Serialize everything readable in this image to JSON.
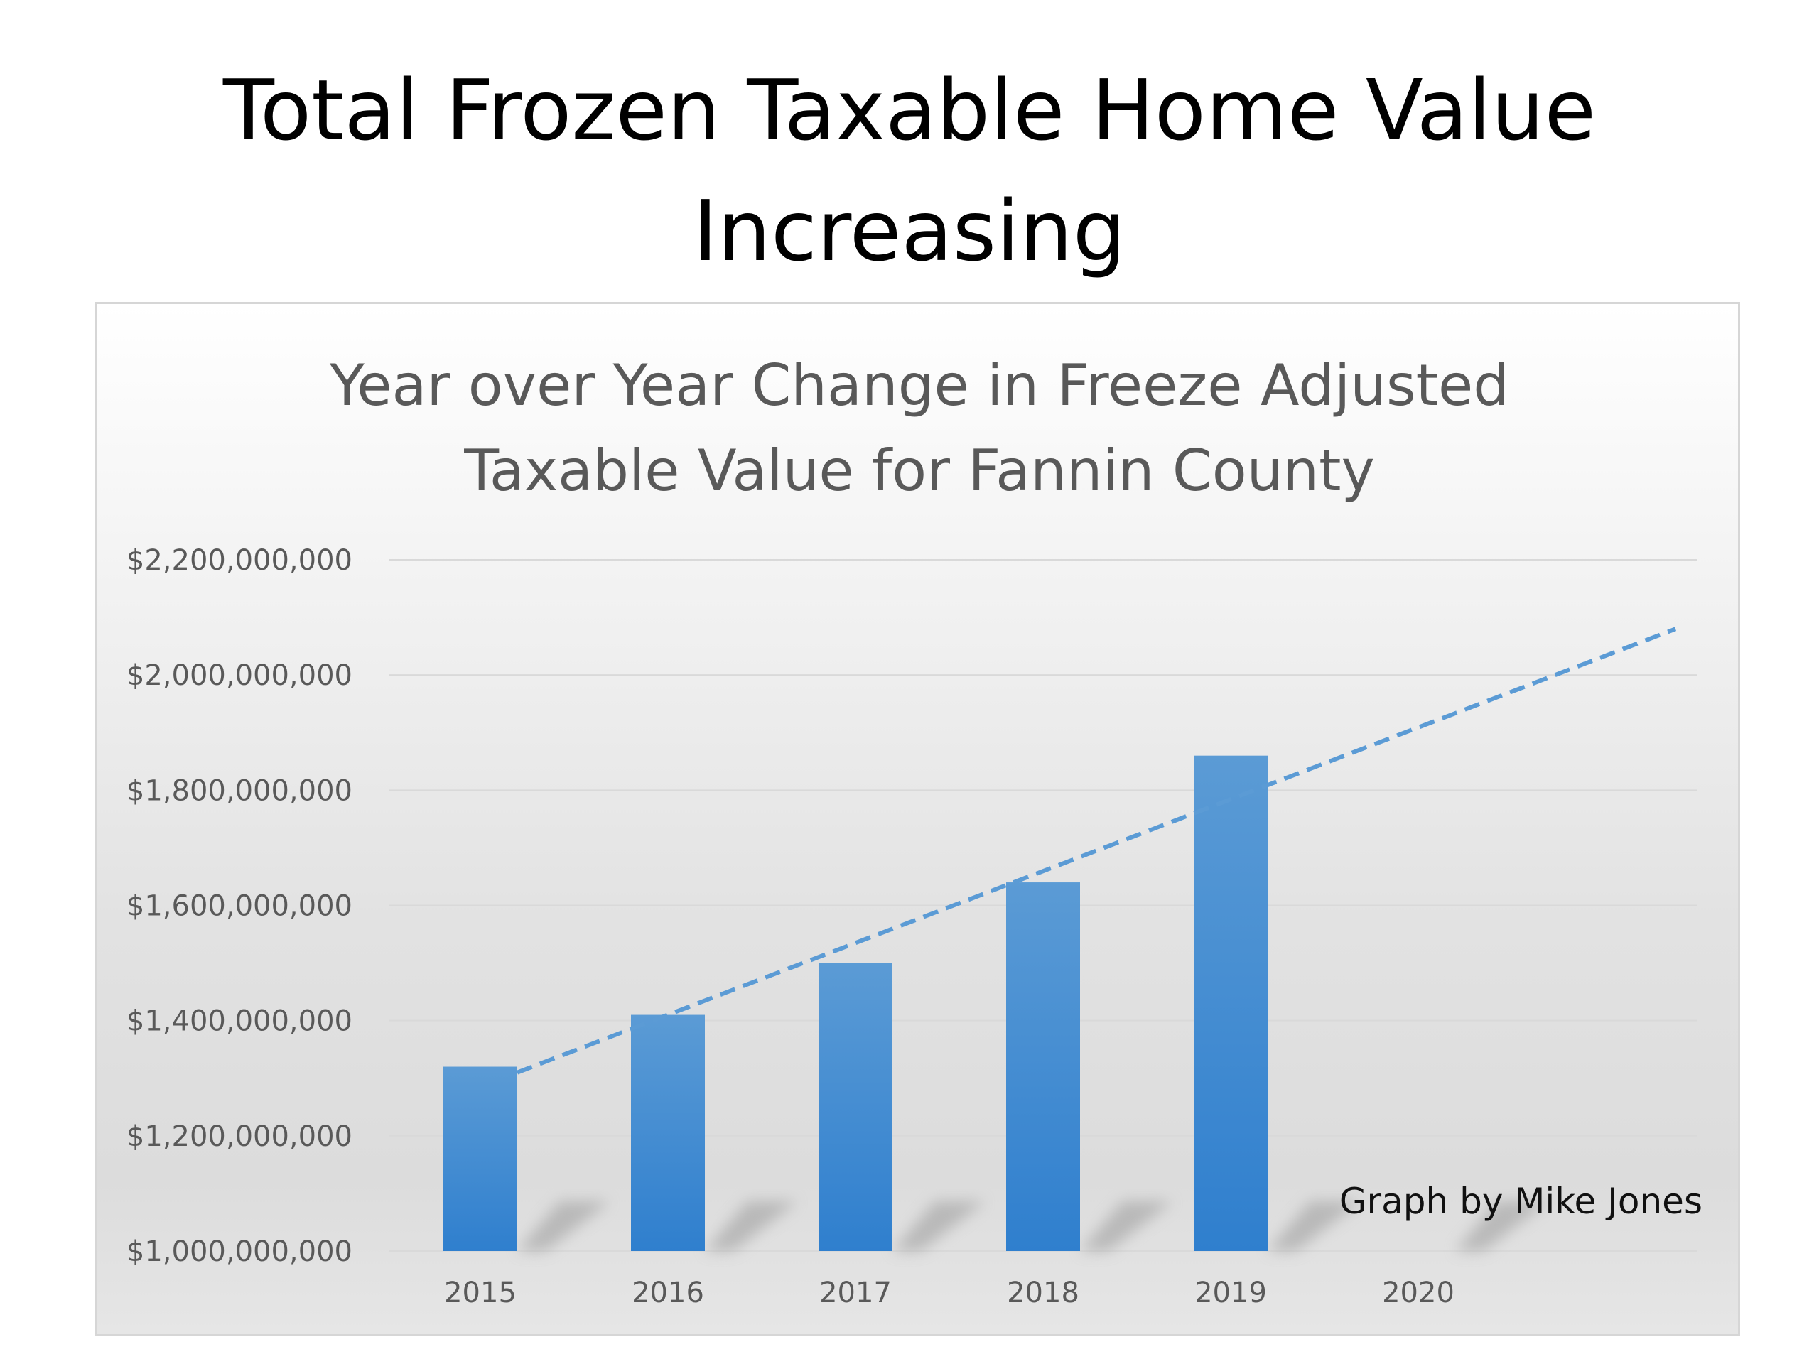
{
  "slide": {
    "title_line1": "Total Frozen Taxable Home Value",
    "title_line2": "Increasing"
  },
  "chart_data": {
    "type": "bar",
    "title_lines": [
      "Year over Year Change in Freeze Adjusted",
      "Taxable Value for Fannin County"
    ],
    "categories": [
      "2015",
      "2016",
      "2017",
      "2018",
      "2019",
      "2020"
    ],
    "values": [
      1320000000,
      1410000000,
      1500000000,
      1640000000,
      1860000000,
      null
    ],
    "ylim": [
      1000000000,
      2200000000
    ],
    "y_ticks": [
      "$1,000,000,000",
      "$1,200,000,000",
      "$1,400,000,000",
      "$1,600,000,000",
      "$1,800,000,000",
      "$2,000,000,000",
      "$2,200,000,000"
    ],
    "y_tick_values": [
      1000000000,
      1200000000,
      1400000000,
      1600000000,
      1800000000,
      2000000000,
      2200000000
    ],
    "trendline": {
      "style": "dashed",
      "from_category": "2015",
      "from_value": 1310000000,
      "to_value": 2080000000
    },
    "grid": true,
    "xlabel": "",
    "ylabel": "",
    "annotation": "Graph by Mike Jones",
    "colors": {
      "bar": "#4a8fd2",
      "bar_top": "#5b9bd5",
      "bar_bottom": "#2f7fce",
      "trendline": "#5b9bd5",
      "grid": "#d9d9d9",
      "text": "#595959"
    }
  }
}
